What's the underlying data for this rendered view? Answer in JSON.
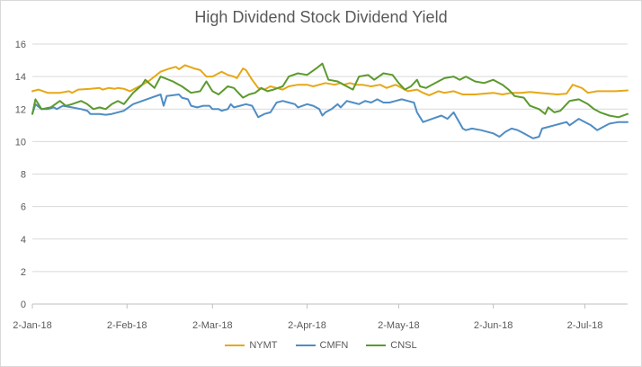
{
  "chart_data": {
    "type": "line",
    "title": "High Dividend Stock Dividend Yield",
    "xlabel": "",
    "ylabel": "",
    "ylim": [
      0,
      16
    ],
    "yticks": [
      0,
      2,
      4,
      6,
      8,
      10,
      12,
      14,
      16
    ],
    "xlim": [
      "2018-01-02",
      "2018-07-16"
    ],
    "xticks": [
      {
        "date": "2018-01-02",
        "label": "2-Jan-18"
      },
      {
        "date": "2018-02-02",
        "label": "2-Feb-18"
      },
      {
        "date": "2018-03-02",
        "label": "2-Mar-18"
      },
      {
        "date": "2018-04-02",
        "label": "2-Apr-18"
      },
      {
        "date": "2018-05-02",
        "label": "2-May-18"
      },
      {
        "date": "2018-06-02",
        "label": "2-Jun-18"
      },
      {
        "date": "2018-07-02",
        "label": "2-Jul-18"
      }
    ],
    "grid": "horizontal",
    "legend": "bottom",
    "series": [
      {
        "name": "NYMT",
        "color": "#E6A817",
        "points": [
          [
            "2018-01-02",
            13.1
          ],
          [
            "2018-01-04",
            13.2
          ],
          [
            "2018-01-07",
            13.0
          ],
          [
            "2018-01-11",
            13.0
          ],
          [
            "2018-01-14",
            13.1
          ],
          [
            "2018-01-15",
            13.0
          ],
          [
            "2018-01-17",
            13.2
          ],
          [
            "2018-01-21",
            13.25
          ],
          [
            "2018-01-24",
            13.3
          ],
          [
            "2018-01-25",
            13.2
          ],
          [
            "2018-01-27",
            13.3
          ],
          [
            "2018-01-29",
            13.25
          ],
          [
            "2018-01-30",
            13.3
          ],
          [
            "2018-02-01",
            13.25
          ],
          [
            "2018-02-03",
            13.1
          ],
          [
            "2018-02-06",
            13.4
          ],
          [
            "2018-02-09",
            13.7
          ],
          [
            "2018-02-13",
            14.3
          ],
          [
            "2018-02-16",
            14.5
          ],
          [
            "2018-02-18",
            14.6
          ],
          [
            "2018-02-19",
            14.45
          ],
          [
            "2018-02-21",
            14.7
          ],
          [
            "2018-02-24",
            14.5
          ],
          [
            "2018-02-26",
            14.4
          ],
          [
            "2018-02-27",
            14.2
          ],
          [
            "2018-02-28",
            14.0
          ],
          [
            "2018-03-02",
            14.0
          ],
          [
            "2018-03-05",
            14.3
          ],
          [
            "2018-03-07",
            14.1
          ],
          [
            "2018-03-09",
            14.0
          ],
          [
            "2018-03-10",
            13.9
          ],
          [
            "2018-03-12",
            14.5
          ],
          [
            "2018-03-13",
            14.4
          ],
          [
            "2018-03-15",
            13.8
          ],
          [
            "2018-03-17",
            13.3
          ],
          [
            "2018-03-19",
            13.2
          ],
          [
            "2018-03-21",
            13.4
          ],
          [
            "2018-03-23",
            13.3
          ],
          [
            "2018-03-25",
            13.2
          ],
          [
            "2018-03-27",
            13.4
          ],
          [
            "2018-03-30",
            13.5
          ],
          [
            "2018-04-02",
            13.5
          ],
          [
            "2018-04-04",
            13.4
          ],
          [
            "2018-04-06",
            13.5
          ],
          [
            "2018-04-08",
            13.6
          ],
          [
            "2018-04-11",
            13.5
          ],
          [
            "2018-04-13",
            13.6
          ],
          [
            "2018-04-14",
            13.5
          ],
          [
            "2018-04-16",
            13.6
          ],
          [
            "2018-04-18",
            13.5
          ],
          [
            "2018-04-20",
            13.5
          ],
          [
            "2018-04-23",
            13.4
          ],
          [
            "2018-04-26",
            13.5
          ],
          [
            "2018-04-28",
            13.3
          ],
          [
            "2018-05-01",
            13.5
          ],
          [
            "2018-05-03",
            13.3
          ],
          [
            "2018-05-05",
            13.1
          ],
          [
            "2018-05-08",
            13.2
          ],
          [
            "2018-05-10",
            13.0
          ],
          [
            "2018-05-12",
            12.85
          ],
          [
            "2018-05-15",
            13.1
          ],
          [
            "2018-05-17",
            13.0
          ],
          [
            "2018-05-20",
            13.1
          ],
          [
            "2018-05-23",
            12.9
          ],
          [
            "2018-05-27",
            12.9
          ],
          [
            "2018-05-30",
            12.95
          ],
          [
            "2018-06-02",
            13.0
          ],
          [
            "2018-06-05",
            12.9
          ],
          [
            "2018-06-08",
            13.0
          ],
          [
            "2018-06-11",
            13.0
          ],
          [
            "2018-06-14",
            13.05
          ],
          [
            "2018-06-17",
            13.0
          ],
          [
            "2018-06-20",
            12.95
          ],
          [
            "2018-06-23",
            12.9
          ],
          [
            "2018-06-26",
            12.95
          ],
          [
            "2018-06-28",
            13.5
          ],
          [
            "2018-07-01",
            13.3
          ],
          [
            "2018-07-03",
            13.0
          ],
          [
            "2018-07-06",
            13.1
          ],
          [
            "2018-07-09",
            13.1
          ],
          [
            "2018-07-12",
            13.1
          ],
          [
            "2018-07-16",
            13.15
          ]
        ]
      },
      {
        "name": "CMFN",
        "color": "#4F8DC4",
        "points": [
          [
            "2018-01-02",
            11.7
          ],
          [
            "2018-01-03",
            12.3
          ],
          [
            "2018-01-05",
            12.0
          ],
          [
            "2018-01-07",
            12.0
          ],
          [
            "2018-01-09",
            12.1
          ],
          [
            "2018-01-10",
            12.0
          ],
          [
            "2018-01-12",
            12.2
          ],
          [
            "2018-01-15",
            12.1
          ],
          [
            "2018-01-18",
            12.0
          ],
          [
            "2018-01-20",
            11.9
          ],
          [
            "2018-01-21",
            11.7
          ],
          [
            "2018-01-24",
            11.7
          ],
          [
            "2018-01-26",
            11.65
          ],
          [
            "2018-01-28",
            11.7
          ],
          [
            "2018-02-01",
            11.9
          ],
          [
            "2018-02-04",
            12.3
          ],
          [
            "2018-02-07",
            12.5
          ],
          [
            "2018-02-10",
            12.7
          ],
          [
            "2018-02-13",
            12.9
          ],
          [
            "2018-02-14",
            12.2
          ],
          [
            "2018-02-15",
            12.8
          ],
          [
            "2018-02-19",
            12.9
          ],
          [
            "2018-02-20",
            12.7
          ],
          [
            "2018-02-22",
            12.6
          ],
          [
            "2018-02-23",
            12.2
          ],
          [
            "2018-02-25",
            12.1
          ],
          [
            "2018-02-27",
            12.2
          ],
          [
            "2018-03-01",
            12.2
          ],
          [
            "2018-03-02",
            12.0
          ],
          [
            "2018-03-04",
            12.0
          ],
          [
            "2018-03-05",
            11.9
          ],
          [
            "2018-03-07",
            12.0
          ],
          [
            "2018-03-08",
            12.3
          ],
          [
            "2018-03-09",
            12.1
          ],
          [
            "2018-03-11",
            12.2
          ],
          [
            "2018-03-13",
            12.3
          ],
          [
            "2018-03-15",
            12.2
          ],
          [
            "2018-03-17",
            11.5
          ],
          [
            "2018-03-19",
            11.7
          ],
          [
            "2018-03-21",
            11.8
          ],
          [
            "2018-03-23",
            12.4
          ],
          [
            "2018-03-25",
            12.5
          ],
          [
            "2018-03-27",
            12.4
          ],
          [
            "2018-03-29",
            12.3
          ],
          [
            "2018-03-30",
            12.1
          ],
          [
            "2018-04-02",
            12.3
          ],
          [
            "2018-04-04",
            12.2
          ],
          [
            "2018-04-06",
            12.0
          ],
          [
            "2018-04-07",
            11.6
          ],
          [
            "2018-04-08",
            11.8
          ],
          [
            "2018-04-10",
            12.0
          ],
          [
            "2018-04-12",
            12.3
          ],
          [
            "2018-04-13",
            12.1
          ],
          [
            "2018-04-15",
            12.5
          ],
          [
            "2018-04-17",
            12.4
          ],
          [
            "2018-04-19",
            12.3
          ],
          [
            "2018-04-21",
            12.5
          ],
          [
            "2018-04-23",
            12.4
          ],
          [
            "2018-04-25",
            12.6
          ],
          [
            "2018-04-27",
            12.4
          ],
          [
            "2018-04-29",
            12.4
          ],
          [
            "2018-05-01",
            12.5
          ],
          [
            "2018-05-03",
            12.6
          ],
          [
            "2018-05-05",
            12.5
          ],
          [
            "2018-05-07",
            12.4
          ],
          [
            "2018-05-08",
            11.8
          ],
          [
            "2018-05-10",
            11.2
          ],
          [
            "2018-05-13",
            11.4
          ],
          [
            "2018-05-16",
            11.6
          ],
          [
            "2018-05-18",
            11.4
          ],
          [
            "2018-05-20",
            11.8
          ],
          [
            "2018-05-23",
            10.8
          ],
          [
            "2018-05-24",
            10.7
          ],
          [
            "2018-05-26",
            10.8
          ],
          [
            "2018-05-29",
            10.7
          ],
          [
            "2018-06-02",
            10.5
          ],
          [
            "2018-06-04",
            10.3
          ],
          [
            "2018-06-06",
            10.6
          ],
          [
            "2018-06-08",
            10.8
          ],
          [
            "2018-06-10",
            10.7
          ],
          [
            "2018-06-12",
            10.5
          ],
          [
            "2018-06-14",
            10.3
          ],
          [
            "2018-06-15",
            10.2
          ],
          [
            "2018-06-17",
            10.3
          ],
          [
            "2018-06-18",
            10.8
          ],
          [
            "2018-06-20",
            10.9
          ],
          [
            "2018-06-22",
            11.0
          ],
          [
            "2018-06-24",
            11.1
          ],
          [
            "2018-06-26",
            11.2
          ],
          [
            "2018-06-27",
            11.0
          ],
          [
            "2018-06-30",
            11.4
          ],
          [
            "2018-07-02",
            11.2
          ],
          [
            "2018-07-04",
            11.0
          ],
          [
            "2018-07-06",
            10.7
          ],
          [
            "2018-07-08",
            10.9
          ],
          [
            "2018-07-10",
            11.1
          ],
          [
            "2018-07-13",
            11.2
          ],
          [
            "2018-07-16",
            11.2
          ]
        ]
      },
      {
        "name": "CNSL",
        "color": "#5B9A2E",
        "points": [
          [
            "2018-01-02",
            11.7
          ],
          [
            "2018-01-03",
            12.6
          ],
          [
            "2018-01-05",
            12.0
          ],
          [
            "2018-01-08",
            12.1
          ],
          [
            "2018-01-11",
            12.5
          ],
          [
            "2018-01-13",
            12.2
          ],
          [
            "2018-01-15",
            12.3
          ],
          [
            "2018-01-18",
            12.5
          ],
          [
            "2018-01-20",
            12.3
          ],
          [
            "2018-01-22",
            12.0
          ],
          [
            "2018-01-24",
            12.1
          ],
          [
            "2018-01-26",
            12.0
          ],
          [
            "2018-01-28",
            12.3
          ],
          [
            "2018-01-30",
            12.5
          ],
          [
            "2018-02-01",
            12.3
          ],
          [
            "2018-02-04",
            13.0
          ],
          [
            "2018-02-07",
            13.5
          ],
          [
            "2018-02-08",
            13.8
          ],
          [
            "2018-02-11",
            13.3
          ],
          [
            "2018-02-13",
            14.0
          ],
          [
            "2018-02-17",
            13.7
          ],
          [
            "2018-02-20",
            13.4
          ],
          [
            "2018-02-23",
            13.0
          ],
          [
            "2018-02-26",
            13.1
          ],
          [
            "2018-02-28",
            13.7
          ],
          [
            "2018-03-02",
            13.1
          ],
          [
            "2018-03-04",
            12.9
          ],
          [
            "2018-03-07",
            13.4
          ],
          [
            "2018-03-09",
            13.3
          ],
          [
            "2018-03-12",
            12.7
          ],
          [
            "2018-03-14",
            12.9
          ],
          [
            "2018-03-16",
            13.0
          ],
          [
            "2018-03-18",
            13.3
          ],
          [
            "2018-03-20",
            13.1
          ],
          [
            "2018-03-22",
            13.2
          ],
          [
            "2018-03-25",
            13.4
          ],
          [
            "2018-03-27",
            14.0
          ],
          [
            "2018-03-30",
            14.2
          ],
          [
            "2018-04-02",
            14.1
          ],
          [
            "2018-04-05",
            14.5
          ],
          [
            "2018-04-07",
            14.8
          ],
          [
            "2018-04-09",
            13.8
          ],
          [
            "2018-04-12",
            13.7
          ],
          [
            "2018-04-14",
            13.5
          ],
          [
            "2018-04-17",
            13.2
          ],
          [
            "2018-04-19",
            14.0
          ],
          [
            "2018-04-22",
            14.1
          ],
          [
            "2018-04-24",
            13.8
          ],
          [
            "2018-04-27",
            14.2
          ],
          [
            "2018-04-30",
            14.1
          ],
          [
            "2018-05-02",
            13.6
          ],
          [
            "2018-05-04",
            13.2
          ],
          [
            "2018-05-06",
            13.4
          ],
          [
            "2018-05-08",
            13.8
          ],
          [
            "2018-05-09",
            13.4
          ],
          [
            "2018-05-11",
            13.3
          ],
          [
            "2018-05-14",
            13.6
          ],
          [
            "2018-05-17",
            13.9
          ],
          [
            "2018-05-20",
            14.0
          ],
          [
            "2018-05-22",
            13.8
          ],
          [
            "2018-05-24",
            14.0
          ],
          [
            "2018-05-27",
            13.7
          ],
          [
            "2018-05-30",
            13.6
          ],
          [
            "2018-06-02",
            13.8
          ],
          [
            "2018-06-05",
            13.5
          ],
          [
            "2018-06-07",
            13.2
          ],
          [
            "2018-06-09",
            12.8
          ],
          [
            "2018-06-12",
            12.7
          ],
          [
            "2018-06-14",
            12.2
          ],
          [
            "2018-06-17",
            12.0
          ],
          [
            "2018-06-19",
            11.7
          ],
          [
            "2018-06-20",
            12.1
          ],
          [
            "2018-06-22",
            11.8
          ],
          [
            "2018-06-24",
            11.9
          ],
          [
            "2018-06-27",
            12.5
          ],
          [
            "2018-06-30",
            12.6
          ],
          [
            "2018-07-03",
            12.3
          ],
          [
            "2018-07-05",
            12.0
          ],
          [
            "2018-07-07",
            11.8
          ],
          [
            "2018-07-10",
            11.6
          ],
          [
            "2018-07-13",
            11.5
          ],
          [
            "2018-07-16",
            11.7
          ]
        ]
      }
    ]
  }
}
